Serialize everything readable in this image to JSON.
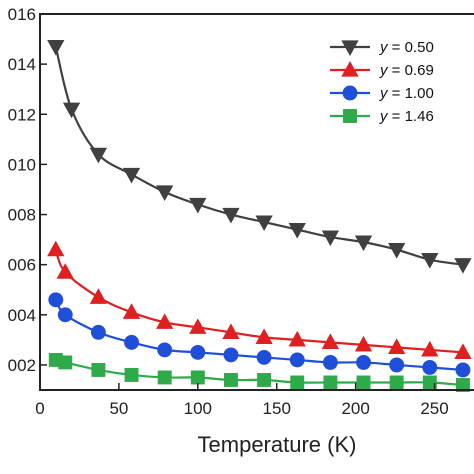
{
  "chart_data": {
    "type": "line",
    "xlabel": "Temperature (K)",
    "xlim": [
      0,
      275
    ],
    "ylim": [
      0.001,
      0.016
    ],
    "x_ticks": [
      {
        "value": 0,
        "label": "0"
      },
      {
        "value": 50,
        "label": "50"
      },
      {
        "value": 100,
        "label": "100"
      },
      {
        "value": 150,
        "label": "150"
      },
      {
        "value": 200,
        "label": "200"
      },
      {
        "value": 250,
        "label": "250"
      }
    ],
    "y_ticks": [
      {
        "value": 0.002,
        "label": "002"
      },
      {
        "value": 0.004,
        "label": "004"
      },
      {
        "value": 0.006,
        "label": "006"
      },
      {
        "value": 0.008,
        "label": "008"
      },
      {
        "value": 0.01,
        "label": "010"
      },
      {
        "value": 0.012,
        "label": "012"
      },
      {
        "value": 0.014,
        "label": "014"
      },
      {
        "value": 0.016,
        "label": "016"
      }
    ],
    "legend": {
      "position": "top-right",
      "prefix": "y",
      "separator": " = "
    },
    "series": [
      {
        "name": "0.50",
        "color": "#404040",
        "marker": "triangle-down",
        "points": [
          [
            10,
            0.0147
          ],
          [
            20,
            0.0122
          ],
          [
            37,
            0.0104
          ],
          [
            58,
            0.0096
          ],
          [
            79,
            0.0089
          ],
          [
            100,
            0.0084
          ],
          [
            121,
            0.008
          ],
          [
            142,
            0.0077
          ],
          [
            163,
            0.0074
          ],
          [
            184,
            0.0071
          ],
          [
            205,
            0.0069
          ],
          [
            226,
            0.0066
          ],
          [
            247,
            0.0062
          ],
          [
            268,
            0.006
          ]
        ]
      },
      {
        "name": "0.69",
        "color": "#e02020",
        "marker": "triangle-up",
        "points": [
          [
            10,
            0.0066
          ],
          [
            16,
            0.0057
          ],
          [
            37,
            0.0047
          ],
          [
            58,
            0.0041
          ],
          [
            79,
            0.0037
          ],
          [
            100,
            0.0035
          ],
          [
            121,
            0.0033
          ],
          [
            142,
            0.0031
          ],
          [
            163,
            0.003
          ],
          [
            184,
            0.0029
          ],
          [
            205,
            0.0028
          ],
          [
            226,
            0.0027
          ],
          [
            247,
            0.0026
          ],
          [
            268,
            0.0025
          ]
        ]
      },
      {
        "name": "1.00",
        "color": "#1f4fd8",
        "marker": "circle",
        "points": [
          [
            10,
            0.0046
          ],
          [
            16,
            0.004
          ],
          [
            37,
            0.0033
          ],
          [
            58,
            0.0029
          ],
          [
            79,
            0.0026
          ],
          [
            100,
            0.0025
          ],
          [
            121,
            0.0024
          ],
          [
            142,
            0.0023
          ],
          [
            163,
            0.0022
          ],
          [
            184,
            0.0021
          ],
          [
            205,
            0.0021
          ],
          [
            226,
            0.002
          ],
          [
            247,
            0.0019
          ],
          [
            268,
            0.0018
          ]
        ]
      },
      {
        "name": "1.46",
        "color": "#2eaa4a",
        "marker": "square",
        "points": [
          [
            10,
            0.0022
          ],
          [
            16,
            0.0021
          ],
          [
            37,
            0.0018
          ],
          [
            58,
            0.0016
          ],
          [
            79,
            0.0015
          ],
          [
            100,
            0.0015
          ],
          [
            121,
            0.0014
          ],
          [
            142,
            0.0014
          ],
          [
            163,
            0.0013
          ],
          [
            184,
            0.0013
          ],
          [
            205,
            0.0013
          ],
          [
            226,
            0.0013
          ],
          [
            247,
            0.0013
          ],
          [
            268,
            0.0012
          ]
        ]
      }
    ]
  }
}
